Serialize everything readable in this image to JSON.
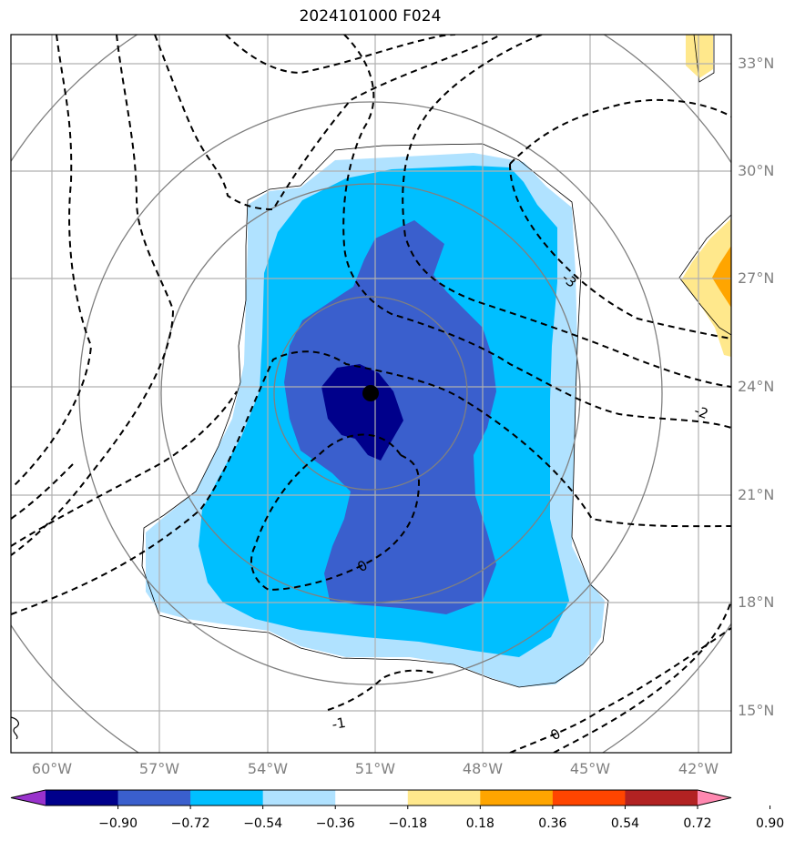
{
  "title": "2024101000 F024",
  "map": {
    "lon_labels": [
      "60°W",
      "57°W",
      "54°W",
      "51°W",
      "48°W",
      "45°W",
      "42°W"
    ],
    "lat_labels": [
      "33°N",
      "30°N",
      "27°N",
      "24°N",
      "21°N",
      "18°N",
      "15°N"
    ],
    "lon_range": [
      -61.2,
      -41.1
    ],
    "lat_range": [
      13.8,
      33.8
    ],
    "storm_center": {
      "lon": -51.0,
      "lat": 23.8
    },
    "contour_labels": [
      "-3",
      "-2",
      "0",
      "-1",
      "0"
    ]
  },
  "colorbar": {
    "ticks": [
      "−0.90",
      "−0.72",
      "−0.54",
      "−0.36",
      "−0.18",
      "0.18",
      "0.36",
      "0.54",
      "0.72",
      "0.90"
    ],
    "colors": [
      "#9932CC",
      "#00008B",
      "#3A5FCD",
      "#00BFFF",
      "#B0E2FF",
      "#FFFFFF",
      "#FFE88C",
      "#FFA500",
      "#FF4500",
      "#B22222",
      "#FF88B0"
    ]
  },
  "colors": {
    "fill_darkblue": "#00008B",
    "fill_royalblue": "#3A5FCD",
    "fill_deepsky": "#00BFFF",
    "fill_lightsky": "#B0E2FF",
    "fill_yellow": "#FFE88C",
    "fill_orange": "#FFA500",
    "grid": "#b0b0b0",
    "rings": "#808080"
  }
}
